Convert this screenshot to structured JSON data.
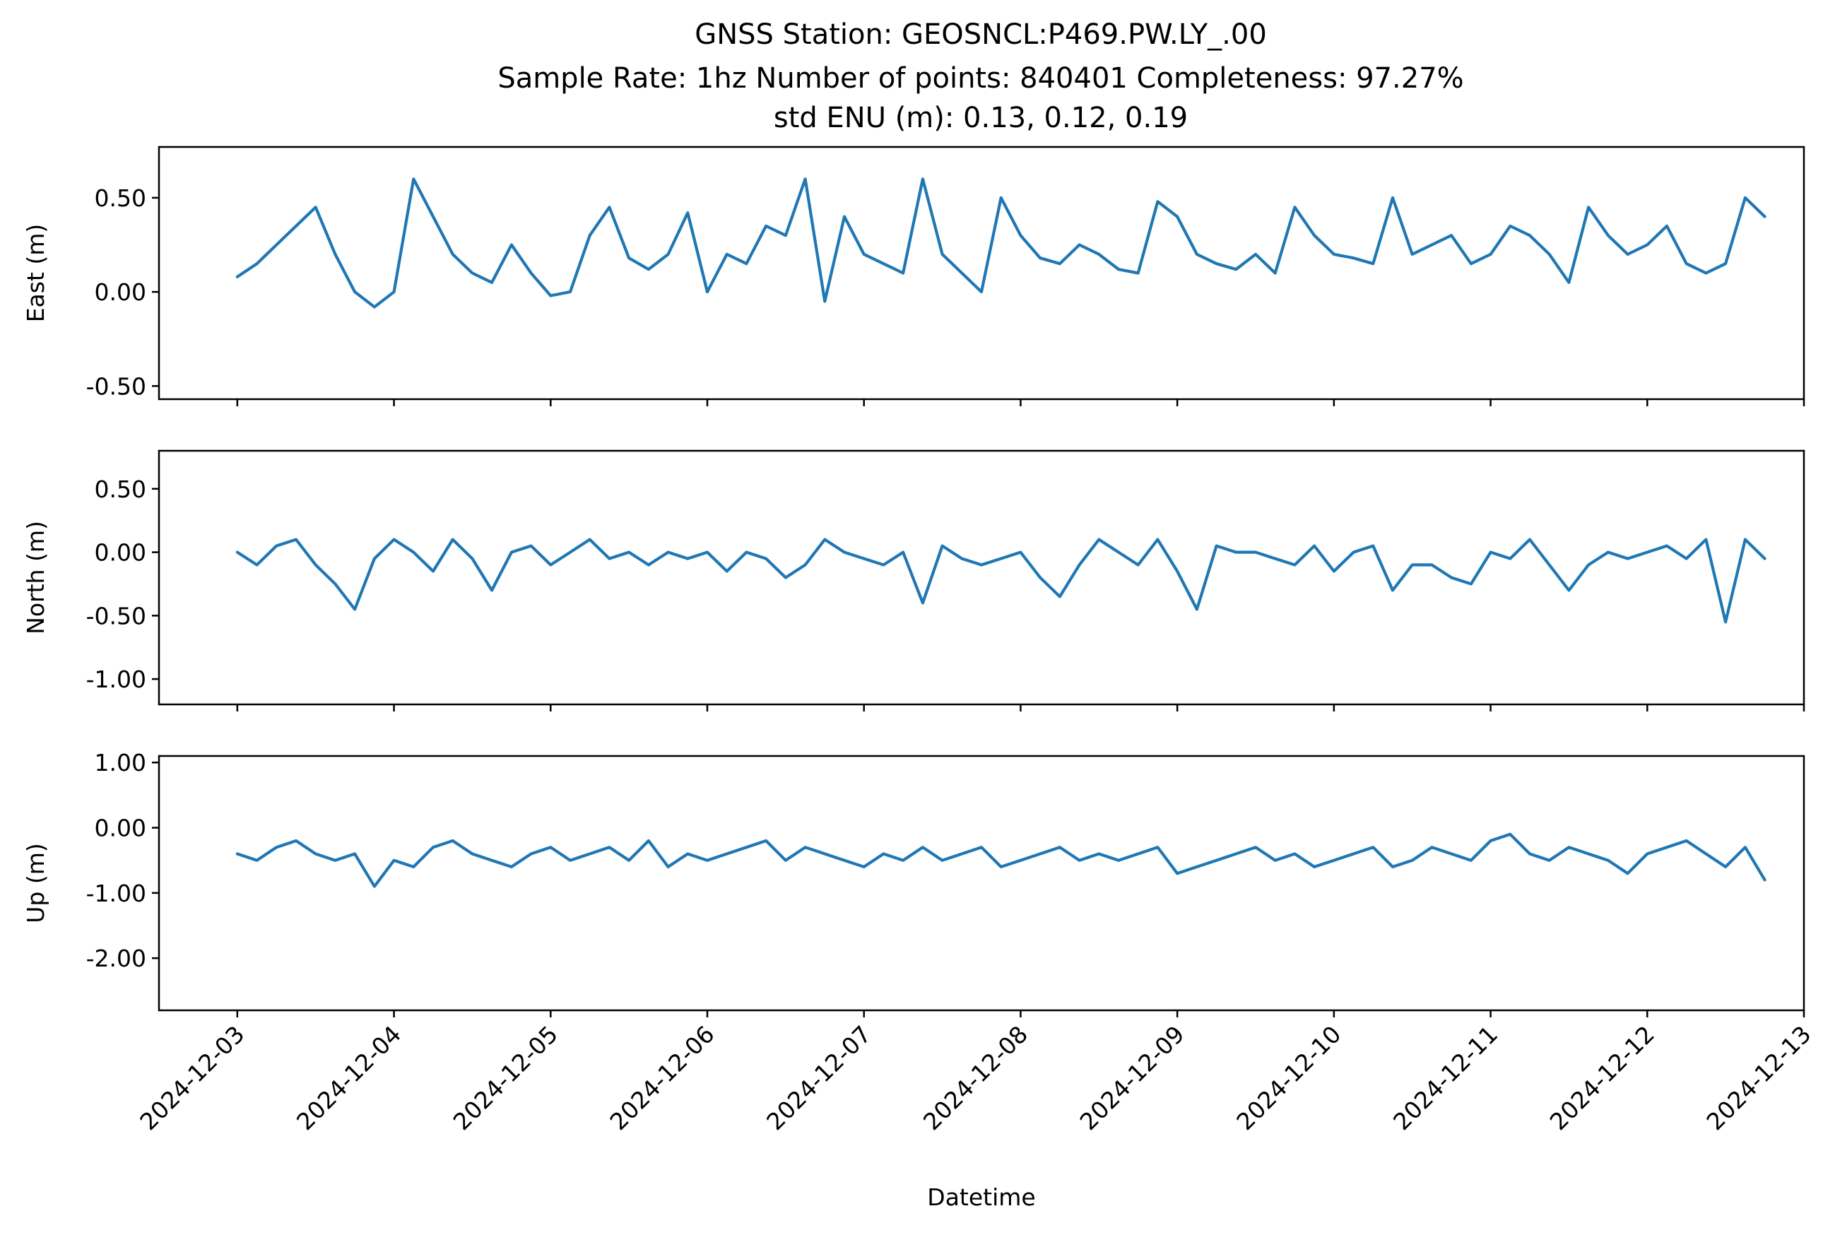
{
  "title": {
    "line1": "GNSS Station: GEOSNCL:P469.PW.LY_.00",
    "line2": "Sample Rate: 1hz   Number of points: 840401    Completeness:  97.27%",
    "line3": "std ENU (m):  0.13, 0.12, 0.19"
  },
  "colors": {
    "series": "#1f77b4",
    "frame": "#000000",
    "background": "#ffffff"
  },
  "chart_data": [
    {
      "type": "line",
      "ylabel": "East (m)",
      "xlabel": "",
      "ylim": [
        -0.57,
        0.77
      ],
      "yticks": [
        0.5,
        0.0,
        -0.5
      ],
      "ytick_labels": [
        "0.50",
        "0.00",
        "-0.50"
      ],
      "xlim": [
        "2024-12-02T12:00",
        "2024-12-13T00:00"
      ],
      "xtick_labels_shown": false,
      "series": [
        {
          "x": [
            "2024-12-03T00:00",
            "2024-12-03T03:00",
            "2024-12-03T06:00",
            "2024-12-03T09:00",
            "2024-12-03T12:00",
            "2024-12-03T15:00",
            "2024-12-03T18:00",
            "2024-12-03T21:00",
            "2024-12-04T00:00",
            "2024-12-04T03:00",
            "2024-12-04T06:00",
            "2024-12-04T09:00",
            "2024-12-04T12:00",
            "2024-12-04T15:00",
            "2024-12-04T18:00",
            "2024-12-04T21:00",
            "2024-12-05T00:00",
            "2024-12-05T03:00",
            "2024-12-05T06:00",
            "2024-12-05T09:00",
            "2024-12-05T12:00",
            "2024-12-05T15:00",
            "2024-12-05T18:00",
            "2024-12-05T21:00",
            "2024-12-06T00:00",
            "2024-12-06T03:00",
            "2024-12-06T06:00",
            "2024-12-06T09:00",
            "2024-12-06T12:00",
            "2024-12-06T15:00",
            "2024-12-06T18:00",
            "2024-12-06T21:00",
            "2024-12-07T00:00",
            "2024-12-07T03:00",
            "2024-12-07T06:00",
            "2024-12-07T09:00",
            "2024-12-07T12:00",
            "2024-12-07T15:00",
            "2024-12-07T18:00",
            "2024-12-07T21:00",
            "2024-12-08T00:00",
            "2024-12-08T03:00",
            "2024-12-08T06:00",
            "2024-12-08T09:00",
            "2024-12-08T12:00",
            "2024-12-08T15:00",
            "2024-12-08T18:00",
            "2024-12-08T21:00",
            "2024-12-09T00:00",
            "2024-12-09T03:00",
            "2024-12-09T06:00",
            "2024-12-09T09:00",
            "2024-12-09T12:00",
            "2024-12-09T15:00",
            "2024-12-09T18:00",
            "2024-12-09T21:00",
            "2024-12-10T00:00",
            "2024-12-10T03:00",
            "2024-12-10T06:00",
            "2024-12-10T09:00",
            "2024-12-10T12:00",
            "2024-12-10T15:00",
            "2024-12-10T18:00",
            "2024-12-10T21:00",
            "2024-12-11T00:00",
            "2024-12-11T03:00",
            "2024-12-11T06:00",
            "2024-12-11T09:00",
            "2024-12-11T12:00",
            "2024-12-11T15:00",
            "2024-12-11T18:00",
            "2024-12-11T21:00",
            "2024-12-12T00:00",
            "2024-12-12T03:00",
            "2024-12-12T06:00",
            "2024-12-12T09:00",
            "2024-12-12T12:00",
            "2024-12-12T15:00",
            "2024-12-12T18:00"
          ],
          "y": [
            0.08,
            0.15,
            0.25,
            0.35,
            0.45,
            0.2,
            0.0,
            -0.08,
            0.0,
            0.6,
            0.4,
            0.2,
            0.1,
            0.05,
            0.25,
            0.1,
            -0.02,
            0.0,
            0.3,
            0.45,
            0.18,
            0.12,
            0.2,
            0.42,
            0.0,
            0.2,
            0.15,
            0.35,
            0.3,
            0.6,
            -0.05,
            0.4,
            0.2,
            0.15,
            0.1,
            0.6,
            0.2,
            0.1,
            0.0,
            0.5,
            0.3,
            0.18,
            0.15,
            0.25,
            0.2,
            0.12,
            0.1,
            0.48,
            0.4,
            0.2,
            0.15,
            0.12,
            0.2,
            0.1,
            0.45,
            0.3,
            0.2,
            0.18,
            0.15,
            0.5,
            0.2,
            0.25,
            0.3,
            0.15,
            0.2,
            0.35,
            0.3,
            0.2,
            0.05,
            0.45,
            0.3,
            0.2,
            0.25,
            0.35,
            0.15,
            0.1,
            0.15,
            0.5,
            0.4
          ]
        }
      ]
    },
    {
      "type": "line",
      "ylabel": "North (m)",
      "xlabel": "",
      "ylim": [
        -1.2,
        0.8
      ],
      "yticks": [
        0.5,
        0.0,
        -0.5,
        -1.0
      ],
      "ytick_labels": [
        "0.50",
        "0.00",
        "-0.50",
        "-1.00"
      ],
      "xlim": [
        "2024-12-02T12:00",
        "2024-12-13T00:00"
      ],
      "xtick_labels_shown": false,
      "series": [
        {
          "x": [
            "2024-12-03T00:00",
            "2024-12-03T03:00",
            "2024-12-03T06:00",
            "2024-12-03T09:00",
            "2024-12-03T12:00",
            "2024-12-03T15:00",
            "2024-12-03T18:00",
            "2024-12-03T21:00",
            "2024-12-04T00:00",
            "2024-12-04T03:00",
            "2024-12-04T06:00",
            "2024-12-04T09:00",
            "2024-12-04T12:00",
            "2024-12-04T15:00",
            "2024-12-04T18:00",
            "2024-12-04T21:00",
            "2024-12-05T00:00",
            "2024-12-05T03:00",
            "2024-12-05T06:00",
            "2024-12-05T09:00",
            "2024-12-05T12:00",
            "2024-12-05T15:00",
            "2024-12-05T18:00",
            "2024-12-05T21:00",
            "2024-12-06T00:00",
            "2024-12-06T03:00",
            "2024-12-06T06:00",
            "2024-12-06T09:00",
            "2024-12-06T12:00",
            "2024-12-06T15:00",
            "2024-12-06T18:00",
            "2024-12-06T21:00",
            "2024-12-07T00:00",
            "2024-12-07T03:00",
            "2024-12-07T06:00",
            "2024-12-07T09:00",
            "2024-12-07T12:00",
            "2024-12-07T15:00",
            "2024-12-07T18:00",
            "2024-12-07T21:00",
            "2024-12-08T00:00",
            "2024-12-08T03:00",
            "2024-12-08T06:00",
            "2024-12-08T09:00",
            "2024-12-08T12:00",
            "2024-12-08T15:00",
            "2024-12-08T18:00",
            "2024-12-08T21:00",
            "2024-12-09T00:00",
            "2024-12-09T03:00",
            "2024-12-09T06:00",
            "2024-12-09T09:00",
            "2024-12-09T12:00",
            "2024-12-09T15:00",
            "2024-12-09T18:00",
            "2024-12-09T21:00",
            "2024-12-10T00:00",
            "2024-12-10T03:00",
            "2024-12-10T06:00",
            "2024-12-10T09:00",
            "2024-12-10T12:00",
            "2024-12-10T15:00",
            "2024-12-10T18:00",
            "2024-12-10T21:00",
            "2024-12-11T00:00",
            "2024-12-11T03:00",
            "2024-12-11T06:00",
            "2024-12-11T09:00",
            "2024-12-11T12:00",
            "2024-12-11T15:00",
            "2024-12-11T18:00",
            "2024-12-11T21:00",
            "2024-12-12T00:00",
            "2024-12-12T03:00",
            "2024-12-12T06:00",
            "2024-12-12T09:00",
            "2024-12-12T12:00",
            "2024-12-12T15:00",
            "2024-12-12T18:00"
          ],
          "y": [
            0.0,
            -0.1,
            0.05,
            0.1,
            -0.1,
            -0.25,
            -0.45,
            -0.05,
            0.1,
            0.0,
            -0.15,
            0.1,
            -0.05,
            -0.3,
            0.0,
            0.05,
            -0.1,
            0.0,
            0.1,
            -0.05,
            0.0,
            -0.1,
            0.0,
            -0.05,
            0.0,
            -0.15,
            0.0,
            -0.05,
            -0.2,
            -0.1,
            0.1,
            0.0,
            -0.05,
            -0.1,
            0.0,
            -0.4,
            0.05,
            -0.05,
            -0.1,
            -0.05,
            0.0,
            -0.2,
            -0.35,
            -0.1,
            0.1,
            0.0,
            -0.1,
            0.1,
            -0.15,
            -0.45,
            0.05,
            0.0,
            0.0,
            -0.05,
            -0.1,
            0.05,
            -0.15,
            0.0,
            0.05,
            -0.3,
            -0.1,
            -0.1,
            -0.2,
            -0.25,
            0.0,
            -0.05,
            0.1,
            -0.1,
            -0.3,
            -0.1,
            0.0,
            -0.05,
            0.0,
            0.05,
            -0.05,
            0.1,
            -0.55,
            0.1,
            -0.05
          ]
        }
      ]
    },
    {
      "type": "line",
      "ylabel": "Up (m)",
      "xlabel": "Datetime",
      "ylim": [
        -2.8,
        1.1
      ],
      "yticks": [
        1.0,
        0.0,
        -1.0,
        -2.0
      ],
      "ytick_labels": [
        "1.00",
        "0.00",
        "-1.00",
        "-2.00"
      ],
      "xlim": [
        "2024-12-02T12:00",
        "2024-12-13T00:00"
      ],
      "xtick_labels_shown": true,
      "xticks": [
        "2024-12-03",
        "2024-12-04",
        "2024-12-05",
        "2024-12-06",
        "2024-12-07",
        "2024-12-08",
        "2024-12-09",
        "2024-12-10",
        "2024-12-11",
        "2024-12-12",
        "2024-12-13"
      ],
      "series": [
        {
          "x": [
            "2024-12-03T00:00",
            "2024-12-03T03:00",
            "2024-12-03T06:00",
            "2024-12-03T09:00",
            "2024-12-03T12:00",
            "2024-12-03T15:00",
            "2024-12-03T18:00",
            "2024-12-03T21:00",
            "2024-12-04T00:00",
            "2024-12-04T03:00",
            "2024-12-04T06:00",
            "2024-12-04T09:00",
            "2024-12-04T12:00",
            "2024-12-04T15:00",
            "2024-12-04T18:00",
            "2024-12-04T21:00",
            "2024-12-05T00:00",
            "2024-12-05T03:00",
            "2024-12-05T06:00",
            "2024-12-05T09:00",
            "2024-12-05T12:00",
            "2024-12-05T15:00",
            "2024-12-05T18:00",
            "2024-12-05T21:00",
            "2024-12-06T00:00",
            "2024-12-06T03:00",
            "2024-12-06T06:00",
            "2024-12-06T09:00",
            "2024-12-06T12:00",
            "2024-12-06T15:00",
            "2024-12-06T18:00",
            "2024-12-06T21:00",
            "2024-12-07T00:00",
            "2024-12-07T03:00",
            "2024-12-07T06:00",
            "2024-12-07T09:00",
            "2024-12-07T12:00",
            "2024-12-07T15:00",
            "2024-12-07T18:00",
            "2024-12-07T21:00",
            "2024-12-08T00:00",
            "2024-12-08T03:00",
            "2024-12-08T06:00",
            "2024-12-08T09:00",
            "2024-12-08T12:00",
            "2024-12-08T15:00",
            "2024-12-08T18:00",
            "2024-12-08T21:00",
            "2024-12-09T00:00",
            "2024-12-09T03:00",
            "2024-12-09T06:00",
            "2024-12-09T09:00",
            "2024-12-09T12:00",
            "2024-12-09T15:00",
            "2024-12-09T18:00",
            "2024-12-09T21:00",
            "2024-12-10T00:00",
            "2024-12-10T03:00",
            "2024-12-10T06:00",
            "2024-12-10T09:00",
            "2024-12-10T12:00",
            "2024-12-10T15:00",
            "2024-12-10T18:00",
            "2024-12-10T21:00",
            "2024-12-11T00:00",
            "2024-12-11T03:00",
            "2024-12-11T06:00",
            "2024-12-11T09:00",
            "2024-12-11T12:00",
            "2024-12-11T15:00",
            "2024-12-11T18:00",
            "2024-12-11T21:00",
            "2024-12-12T00:00",
            "2024-12-12T03:00",
            "2024-12-12T06:00",
            "2024-12-12T09:00",
            "2024-12-12T12:00",
            "2024-12-12T15:00",
            "2024-12-12T18:00"
          ],
          "y": [
            -0.4,
            -0.5,
            -0.3,
            -0.2,
            -0.4,
            -0.5,
            -0.4,
            -0.9,
            -0.5,
            -0.6,
            -0.3,
            -0.2,
            -0.4,
            -0.5,
            -0.6,
            -0.4,
            -0.3,
            -0.5,
            -0.4,
            -0.3,
            -0.5,
            -0.2,
            -0.6,
            -0.4,
            -0.5,
            -0.4,
            -0.3,
            -0.2,
            -0.5,
            -0.3,
            -0.4,
            -0.5,
            -0.6,
            -0.4,
            -0.5,
            -0.3,
            -0.5,
            -0.4,
            -0.3,
            -0.6,
            -0.5,
            -0.4,
            -0.3,
            -0.5,
            -0.4,
            -0.5,
            -0.4,
            -0.3,
            -0.7,
            -0.6,
            -0.5,
            -0.4,
            -0.3,
            -0.5,
            -0.4,
            -0.6,
            -0.5,
            -0.4,
            -0.3,
            -0.6,
            -0.5,
            -0.3,
            -0.4,
            -0.5,
            -0.2,
            -0.1,
            -0.4,
            -0.5,
            -0.3,
            -0.4,
            -0.5,
            -0.7,
            -0.4,
            -0.3,
            -0.2,
            -0.4,
            -0.6,
            -0.3,
            -0.8
          ]
        }
      ]
    }
  ]
}
